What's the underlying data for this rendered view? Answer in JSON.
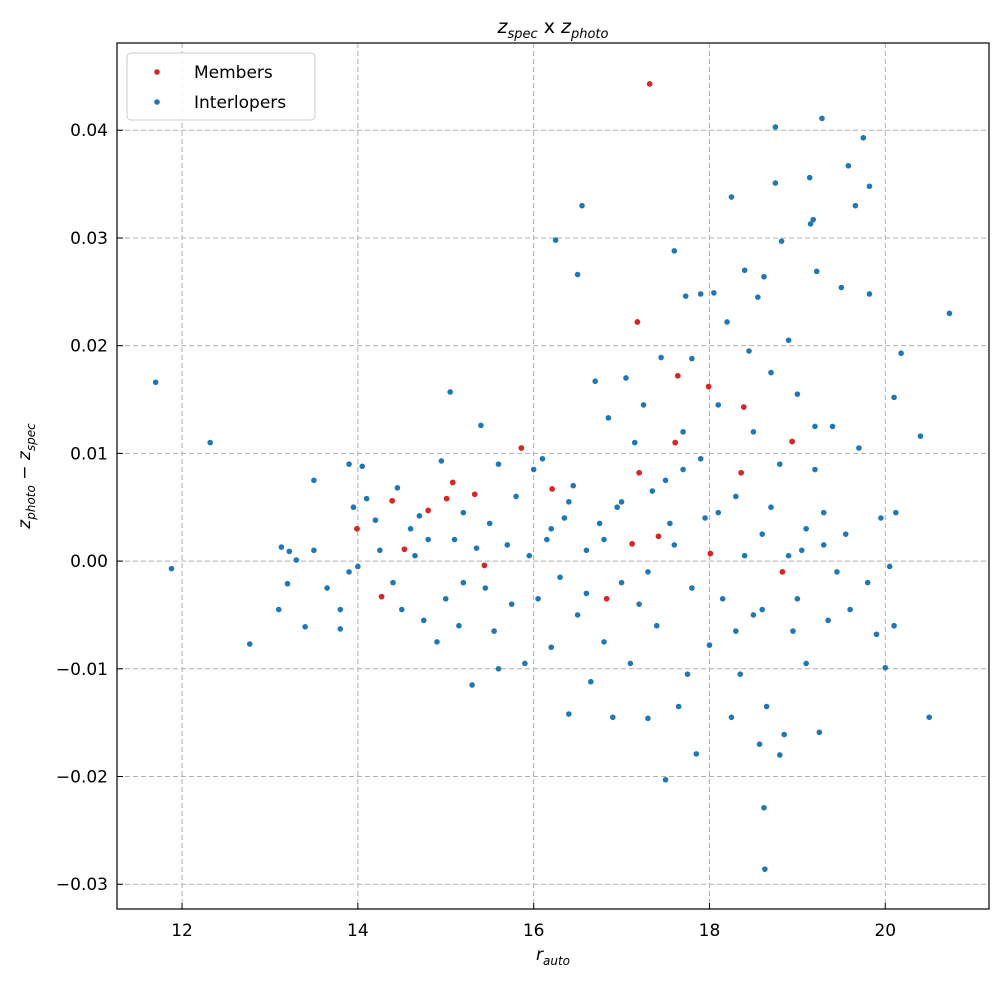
{
  "chart_data": {
    "type": "scatter",
    "title": "z_spec x z_photo",
    "title_parts": {
      "z1": "z",
      "s1": "spec",
      "mid": " x ",
      "z2": "z",
      "s2": "photo"
    },
    "xlabel": {
      "base": "r",
      "sub": "auto"
    },
    "ylabel": {
      "b1": "z",
      "s1": "photo",
      "mid": " − ",
      "b2": "z",
      "s2": "spec"
    },
    "xlim": [
      11.26,
      21.18
    ],
    "ylim": [
      -0.0323,
      0.0481
    ],
    "xticks": [
      12,
      14,
      16,
      18,
      20
    ],
    "xtick_labels": [
      "12",
      "14",
      "16",
      "18",
      "20"
    ],
    "yticks": [
      -0.03,
      -0.02,
      -0.01,
      0.0,
      0.01,
      0.02,
      0.03,
      0.04
    ],
    "ytick_labels": [
      "−0.03",
      "−0.02",
      "−0.01",
      "0.00",
      "0.01",
      "0.02",
      "0.03",
      "0.04"
    ],
    "grid": true,
    "legend_position": "top-left",
    "series": [
      {
        "name": "Members",
        "color": "#d62728",
        "points": [
          [
            17.32,
            0.0443
          ],
          [
            17.18,
            0.0222
          ],
          [
            17.64,
            0.0172
          ],
          [
            17.99,
            0.0162
          ],
          [
            18.39,
            0.0143
          ],
          [
            17.61,
            0.011
          ],
          [
            18.94,
            0.0111
          ],
          [
            15.86,
            0.0105
          ],
          [
            17.2,
            0.0082
          ],
          [
            18.36,
            0.0082
          ],
          [
            15.08,
            0.0073
          ],
          [
            14.39,
            0.0056
          ],
          [
            15.33,
            0.0062
          ],
          [
            15.01,
            0.0058
          ],
          [
            16.21,
            0.0067
          ],
          [
            14.8,
            0.0047
          ],
          [
            13.99,
            0.003
          ],
          [
            14.53,
            0.0011
          ],
          [
            17.12,
            0.0016
          ],
          [
            17.42,
            0.0023
          ],
          [
            18.01,
            0.0007
          ],
          [
            15.44,
            -0.0004
          ],
          [
            14.27,
            -0.0033
          ],
          [
            18.83,
            -0.001
          ],
          [
            16.83,
            -0.0035
          ]
        ]
      },
      {
        "name": "Interlopers",
        "color": "#1f77b4",
        "points": [
          [
            11.7,
            0.0166
          ],
          [
            11.88,
            -0.0007
          ],
          [
            12.32,
            0.011
          ],
          [
            12.77,
            -0.0077
          ],
          [
            13.1,
            -0.0045
          ],
          [
            13.13,
            0.0013
          ],
          [
            13.4,
            -0.0061
          ],
          [
            13.5,
            0.0075
          ],
          [
            13.3,
            0.0001
          ],
          [
            13.2,
            -0.0021
          ],
          [
            13.22,
            0.0009
          ],
          [
            13.5,
            0.001
          ],
          [
            13.65,
            -0.0025
          ],
          [
            13.8,
            -0.0063
          ],
          [
            13.8,
            -0.0045
          ],
          [
            13.9,
            0.009
          ],
          [
            14.05,
            0.0088
          ],
          [
            13.9,
            -0.001
          ],
          [
            13.95,
            0.005
          ],
          [
            14.0,
            -0.0005
          ],
          [
            14.1,
            0.0058
          ],
          [
            14.2,
            0.0038
          ],
          [
            14.25,
            0.001
          ],
          [
            14.4,
            -0.002
          ],
          [
            14.45,
            0.0068
          ],
          [
            14.5,
            -0.0045
          ],
          [
            14.6,
            0.003
          ],
          [
            14.65,
            0.0005
          ],
          [
            14.75,
            -0.0055
          ],
          [
            14.8,
            0.002
          ],
          [
            14.9,
            -0.0075
          ],
          [
            14.95,
            0.0093
          ],
          [
            15.0,
            -0.0035
          ],
          [
            15.05,
            0.0157
          ],
          [
            15.1,
            0.002
          ],
          [
            15.15,
            -0.006
          ],
          [
            15.2,
            0.0045
          ],
          [
            15.3,
            -0.0115
          ],
          [
            15.35,
            0.0012
          ],
          [
            15.4,
            0.0126
          ],
          [
            15.45,
            -0.0025
          ],
          [
            15.5,
            0.0035
          ],
          [
            15.55,
            -0.0065
          ],
          [
            15.6,
            0.009
          ],
          [
            15.6,
            -0.01
          ],
          [
            15.7,
            0.0015
          ],
          [
            15.75,
            -0.004
          ],
          [
            15.8,
            0.006
          ],
          [
            15.9,
            -0.0095
          ],
          [
            15.95,
            0.0005
          ],
          [
            16.0,
            0.0085
          ],
          [
            16.05,
            -0.0035
          ],
          [
            16.1,
            0.0095
          ],
          [
            16.15,
            0.002
          ],
          [
            16.2,
            -0.008
          ],
          [
            16.25,
            0.0298
          ],
          [
            16.3,
            -0.0015
          ],
          [
            16.35,
            0.004
          ],
          [
            16.4,
            -0.0142
          ],
          [
            16.45,
            0.007
          ],
          [
            16.5,
            0.0266
          ],
          [
            16.55,
            0.033
          ],
          [
            16.5,
            -0.005
          ],
          [
            16.6,
            0.001
          ],
          [
            16.65,
            -0.0112
          ],
          [
            16.7,
            0.0167
          ],
          [
            16.75,
            0.0035
          ],
          [
            16.8,
            -0.0075
          ],
          [
            16.85,
            0.0133
          ],
          [
            16.9,
            -0.0145
          ],
          [
            16.95,
            0.005
          ],
          [
            17.0,
            -0.002
          ],
          [
            17.05,
            0.017
          ],
          [
            17.1,
            -0.0095
          ],
          [
            17.15,
            0.011
          ],
          [
            17.2,
            -0.004
          ],
          [
            17.25,
            0.0145
          ],
          [
            17.3,
            -0.0146
          ],
          [
            17.35,
            0.0065
          ],
          [
            17.4,
            -0.006
          ],
          [
            17.45,
            0.0189
          ],
          [
            17.5,
            -0.0203
          ],
          [
            17.55,
            0.0035
          ],
          [
            17.6,
            0.0288
          ],
          [
            17.65,
            -0.0135
          ],
          [
            17.7,
            0.0085
          ],
          [
            17.73,
            0.0246
          ],
          [
            17.75,
            -0.0105
          ],
          [
            17.8,
            0.0188
          ],
          [
            17.85,
            -0.0179
          ],
          [
            17.9,
            0.0248
          ],
          [
            17.95,
            0.004
          ],
          [
            18.0,
            -0.0078
          ],
          [
            18.05,
            0.0249
          ],
          [
            18.1,
            0.0145
          ],
          [
            18.15,
            -0.0035
          ],
          [
            18.2,
            0.0222
          ],
          [
            18.25,
            0.0338
          ],
          [
            18.25,
            -0.0145
          ],
          [
            18.3,
            0.006
          ],
          [
            18.35,
            -0.0105
          ],
          [
            18.4,
            0.027
          ],
          [
            18.45,
            0.0195
          ],
          [
            18.5,
            -0.005
          ],
          [
            18.55,
            0.0245
          ],
          [
            18.57,
            -0.017
          ],
          [
            18.6,
            0.0025
          ],
          [
            18.62,
            0.0264
          ],
          [
            18.62,
            -0.0229
          ],
          [
            18.63,
            -0.0286
          ],
          [
            18.65,
            -0.0135
          ],
          [
            18.7,
            0.0175
          ],
          [
            18.75,
            0.0403
          ],
          [
            18.75,
            0.0351
          ],
          [
            18.8,
            -0.018
          ],
          [
            18.82,
            0.0297
          ],
          [
            18.85,
            -0.0161
          ],
          [
            18.9,
            0.0205
          ],
          [
            18.95,
            -0.0065
          ],
          [
            19.0,
            0.0155
          ],
          [
            19.05,
            0.001
          ],
          [
            19.1,
            -0.0095
          ],
          [
            19.14,
            0.0356
          ],
          [
            19.15,
            0.0313
          ],
          [
            19.18,
            0.0317
          ],
          [
            19.2,
            0.0085
          ],
          [
            19.22,
            0.0269
          ],
          [
            19.25,
            -0.0159
          ],
          [
            19.28,
            0.0411
          ],
          [
            19.3,
            0.0045
          ],
          [
            19.35,
            -0.0055
          ],
          [
            19.4,
            0.0125
          ],
          [
            19.45,
            -0.001
          ],
          [
            19.5,
            0.0254
          ],
          [
            19.55,
            0.0025
          ],
          [
            19.58,
            0.0367
          ],
          [
            19.6,
            -0.0045
          ],
          [
            19.66,
            0.033
          ],
          [
            19.7,
            0.0105
          ],
          [
            19.75,
            0.0393
          ],
          [
            19.8,
            -0.002
          ],
          [
            19.82,
            0.0348
          ],
          [
            19.82,
            0.0248
          ],
          [
            19.9,
            -0.0068
          ],
          [
            19.95,
            0.004
          ],
          [
            20.0,
            -0.0099
          ],
          [
            20.05,
            -0.0005
          ],
          [
            20.1,
            0.0152
          ],
          [
            20.1,
            -0.006
          ],
          [
            20.12,
            0.0045
          ],
          [
            20.18,
            0.0193
          ],
          [
            20.4,
            0.0116
          ],
          [
            20.5,
            -0.0145
          ],
          [
            20.73,
            0.023
          ],
          [
            16.8,
            0.002
          ],
          [
            17.0,
            0.0055
          ],
          [
            17.3,
            -0.001
          ],
          [
            17.6,
            0.0015
          ],
          [
            17.9,
            0.0095
          ],
          [
            18.1,
            0.0045
          ],
          [
            18.4,
            0.0005
          ],
          [
            18.7,
            0.005
          ],
          [
            18.9,
            0.0005
          ],
          [
            19.1,
            0.003
          ],
          [
            19.3,
            0.0015
          ],
          [
            16.2,
            0.003
          ],
          [
            16.6,
            -0.003
          ],
          [
            17.8,
            -0.0025
          ],
          [
            18.3,
            -0.0065
          ],
          [
            18.6,
            -0.0045
          ],
          [
            19.0,
            -0.0035
          ],
          [
            15.2,
            -0.002
          ],
          [
            14.7,
            0.0042
          ],
          [
            16.4,
            0.0055
          ],
          [
            17.5,
            0.0075
          ],
          [
            18.8,
            0.009
          ],
          [
            19.2,
            0.0125
          ],
          [
            18.5,
            0.012
          ],
          [
            17.7,
            0.012
          ]
        ]
      }
    ]
  }
}
